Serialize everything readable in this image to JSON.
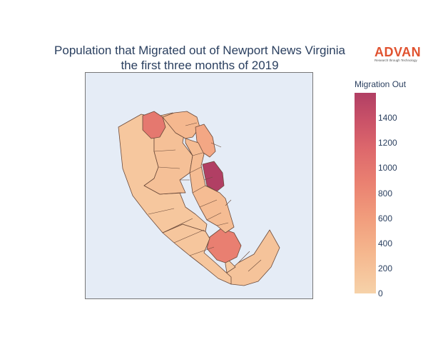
{
  "title": {
    "line1": "Population that Migrated out of Newport News Virginia",
    "line2": "the first three months of 2019"
  },
  "logo": {
    "brand": "ADVAN",
    "tagline": "Research through Technology"
  },
  "colors": {
    "map_background": "#e5ecf6",
    "tract_border": "#6b4a3a",
    "colorscale": [
      "#f6d2a9",
      "#f5b78e",
      "#f19c7c",
      "#ea8171",
      "#dd686c",
      "#ca5268",
      "#b13f64"
    ]
  },
  "legend": {
    "title": "Migration Out",
    "ticks": [
      "1400",
      "1200",
      "1000",
      "800",
      "600",
      "400",
      "200",
      "0"
    ],
    "range": [
      0,
      1600
    ]
  },
  "chart_data": {
    "type": "choropleth",
    "color_variable": "Migration Out",
    "color_range": [
      0,
      1600
    ],
    "regions": [
      {
        "id": "tract-lower-tip",
        "value": 150
      },
      {
        "id": "tract-lower-middle",
        "value": 100
      },
      {
        "id": "tract-south-highlight",
        "value": 820
      },
      {
        "id": "tract-southwest-large",
        "value": 120
      },
      {
        "id": "tract-west-large",
        "value": 110
      },
      {
        "id": "tract-center-west",
        "value": 180
      },
      {
        "id": "tract-northwest-highlight",
        "value": 900
      },
      {
        "id": "tract-north-upper",
        "value": 260
      },
      {
        "id": "tract-east-orange",
        "value": 420
      },
      {
        "id": "tract-center-max",
        "value": 1600
      },
      {
        "id": "tract-central-dense",
        "value": 220
      }
    ]
  }
}
